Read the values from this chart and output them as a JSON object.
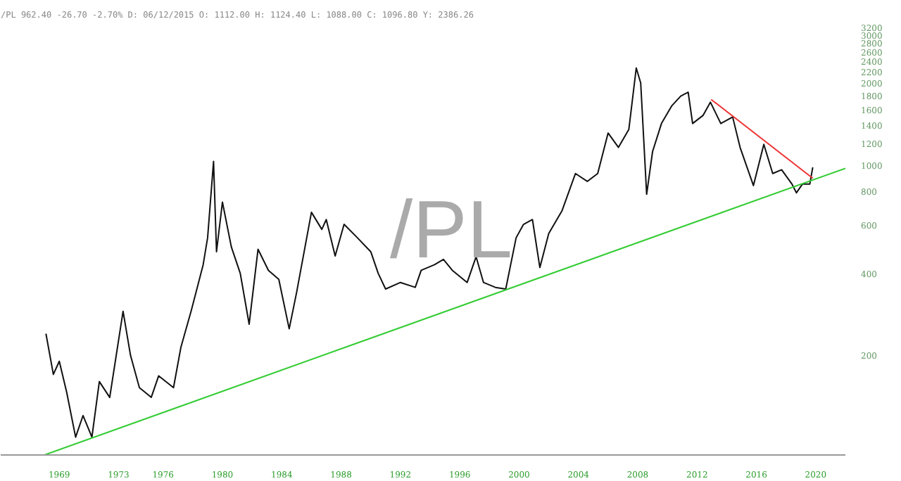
{
  "chart_data": {
    "type": "line",
    "title": "/PL",
    "subtitle": "/PL 962.40 -26.70 -2.70% D: 06/12/2015 O: 1112.00 H: 1124.40 L: 1088.00 C: 1096.80 Y: 2386.26",
    "log": "y",
    "grid": false,
    "marker": "none",
    "line_style": "solid",
    "xlim": [
      1965.05,
      2022.0
    ],
    "ylim": [
      86,
      3200
    ],
    "xticks": [
      1969,
      1973,
      1976,
      1980,
      1984,
      1988,
      1992,
      1996,
      2000,
      2004,
      2008,
      2012,
      2016,
      2020
    ],
    "yticks": [
      200,
      400,
      600,
      800,
      1000,
      1200,
      1400,
      1600,
      1800,
      2000,
      2200,
      2400,
      2600,
      2800,
      3000,
      3200
    ],
    "series": [
      {
        "color": "#111111",
        "x": [
          1968.1,
          1968.6,
          1969.0,
          1969.5,
          1970.1,
          1970.6,
          1971.2,
          1971.7,
          1972.4,
          1973.3,
          1973.8,
          1974.4,
          1975.2,
          1975.7,
          1976.7,
          1977.2,
          1977.9,
          1978.7,
          1979.0,
          1979.4,
          1979.6,
          1980.0,
          1980.6,
          1981.2,
          1981.8,
          1982.4,
          1983.1,
          1983.8,
          1984.5,
          1985.0,
          1986.0,
          1986.7,
          1987.0,
          1987.6,
          1988.2,
          1989.1,
          1990.0,
          1990.5,
          1991.0,
          1992.0,
          1993.0,
          1993.4,
          1994.3,
          1994.9,
          1995.5,
          1996.5,
          1997.1,
          1997.6,
          1998.4,
          1999.1,
          1999.8,
          2000.3,
          2000.9,
          2001.4,
          2002.0,
          2002.9,
          2003.8,
          2004.6,
          2005.3,
          2006.0,
          2006.7,
          2007.4,
          2007.9,
          2008.2,
          2008.6,
          2009.0,
          2009.6,
          2010.3,
          2010.9,
          2011.4,
          2011.7,
          2012.4,
          2012.9,
          2013.6,
          2014.4,
          2014.9,
          2015.8,
          2016.5,
          2017.1,
          2017.7,
          2018.4,
          2018.7,
          2019.1,
          2019.6,
          2019.8
        ],
        "values": [
          240,
          170,
          190,
          146,
          100,
          120,
          100,
          160,
          140,
          290,
          200,
          152,
          140,
          168,
          152,
          214,
          292,
          430,
          540,
          1030,
          480,
          730,
          500,
          400,
          260,
          490,
          410,
          380,
          250,
          340,
          670,
          580,
          630,
          463,
          605,
          540,
          480,
          400,
          350,
          370,
          355,
          410,
          430,
          450,
          410,
          370,
          460,
          370,
          355,
          350,
          540,
          605,
          630,
          420,
          560,
          680,
          930,
          870,
          930,
          1310,
          1160,
          1350,
          2270,
          2000,
          780,
          1120,
          1420,
          1650,
          1790,
          1850,
          1420,
          1520,
          1700,
          1420,
          1500,
          1160,
          840,
          1190,
          930,
          960,
          850,
          790,
          850,
          850,
          980
        ]
      },
      {
        "color": "#33cc33",
        "x": [
          1968.0,
          2022.0
        ],
        "values": [
          86,
          972
        ]
      },
      {
        "color": "#ee3333",
        "x": [
          2012.95,
          2019.8
        ],
        "values": [
          1740,
          893
        ]
      }
    ]
  }
}
